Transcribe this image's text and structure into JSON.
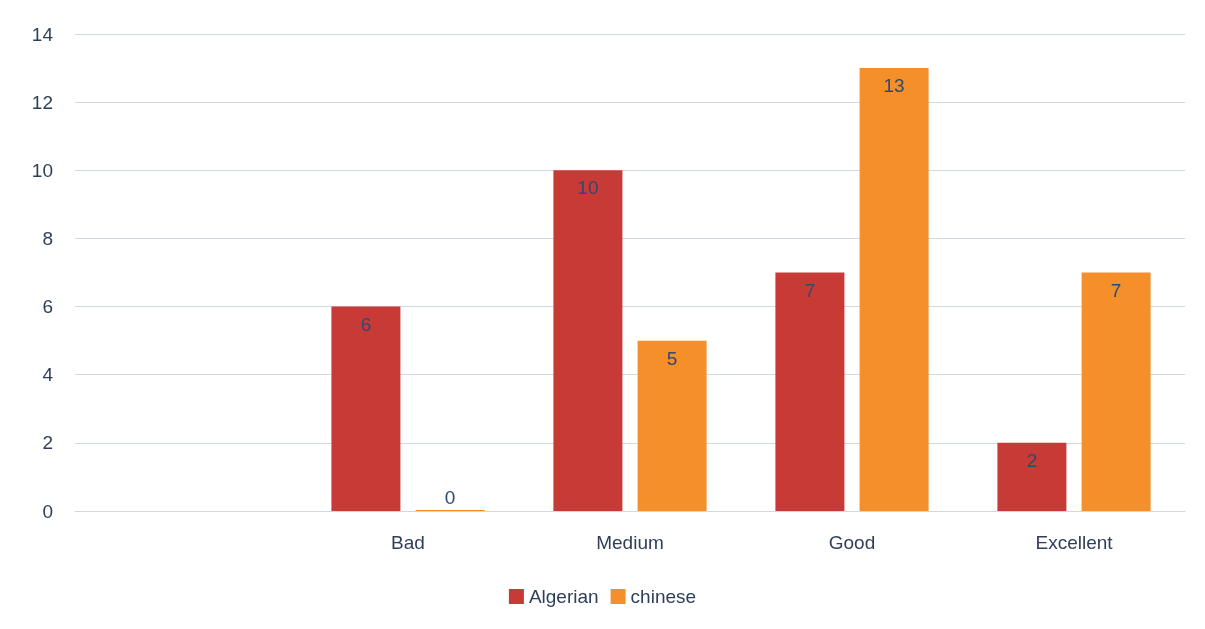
{
  "chart_data": {
    "type": "bar",
    "categories": [
      null,
      "Bad",
      "Medium",
      "Good",
      "Excellent"
    ],
    "series": [
      {
        "name": "Algerian",
        "color": "#c83a35",
        "values": [
          null,
          6,
          10,
          7,
          2
        ]
      },
      {
        "name": "chinese",
        "color": "#f58f2a",
        "values": [
          null,
          0,
          5,
          13,
          7
        ]
      }
    ],
    "ylim": [
      0,
      14
    ],
    "yticks": [
      0,
      2,
      4,
      6,
      8,
      10,
      12,
      14
    ],
    "grid": "y",
    "legend": "bottom",
    "data_labels": true
  }
}
